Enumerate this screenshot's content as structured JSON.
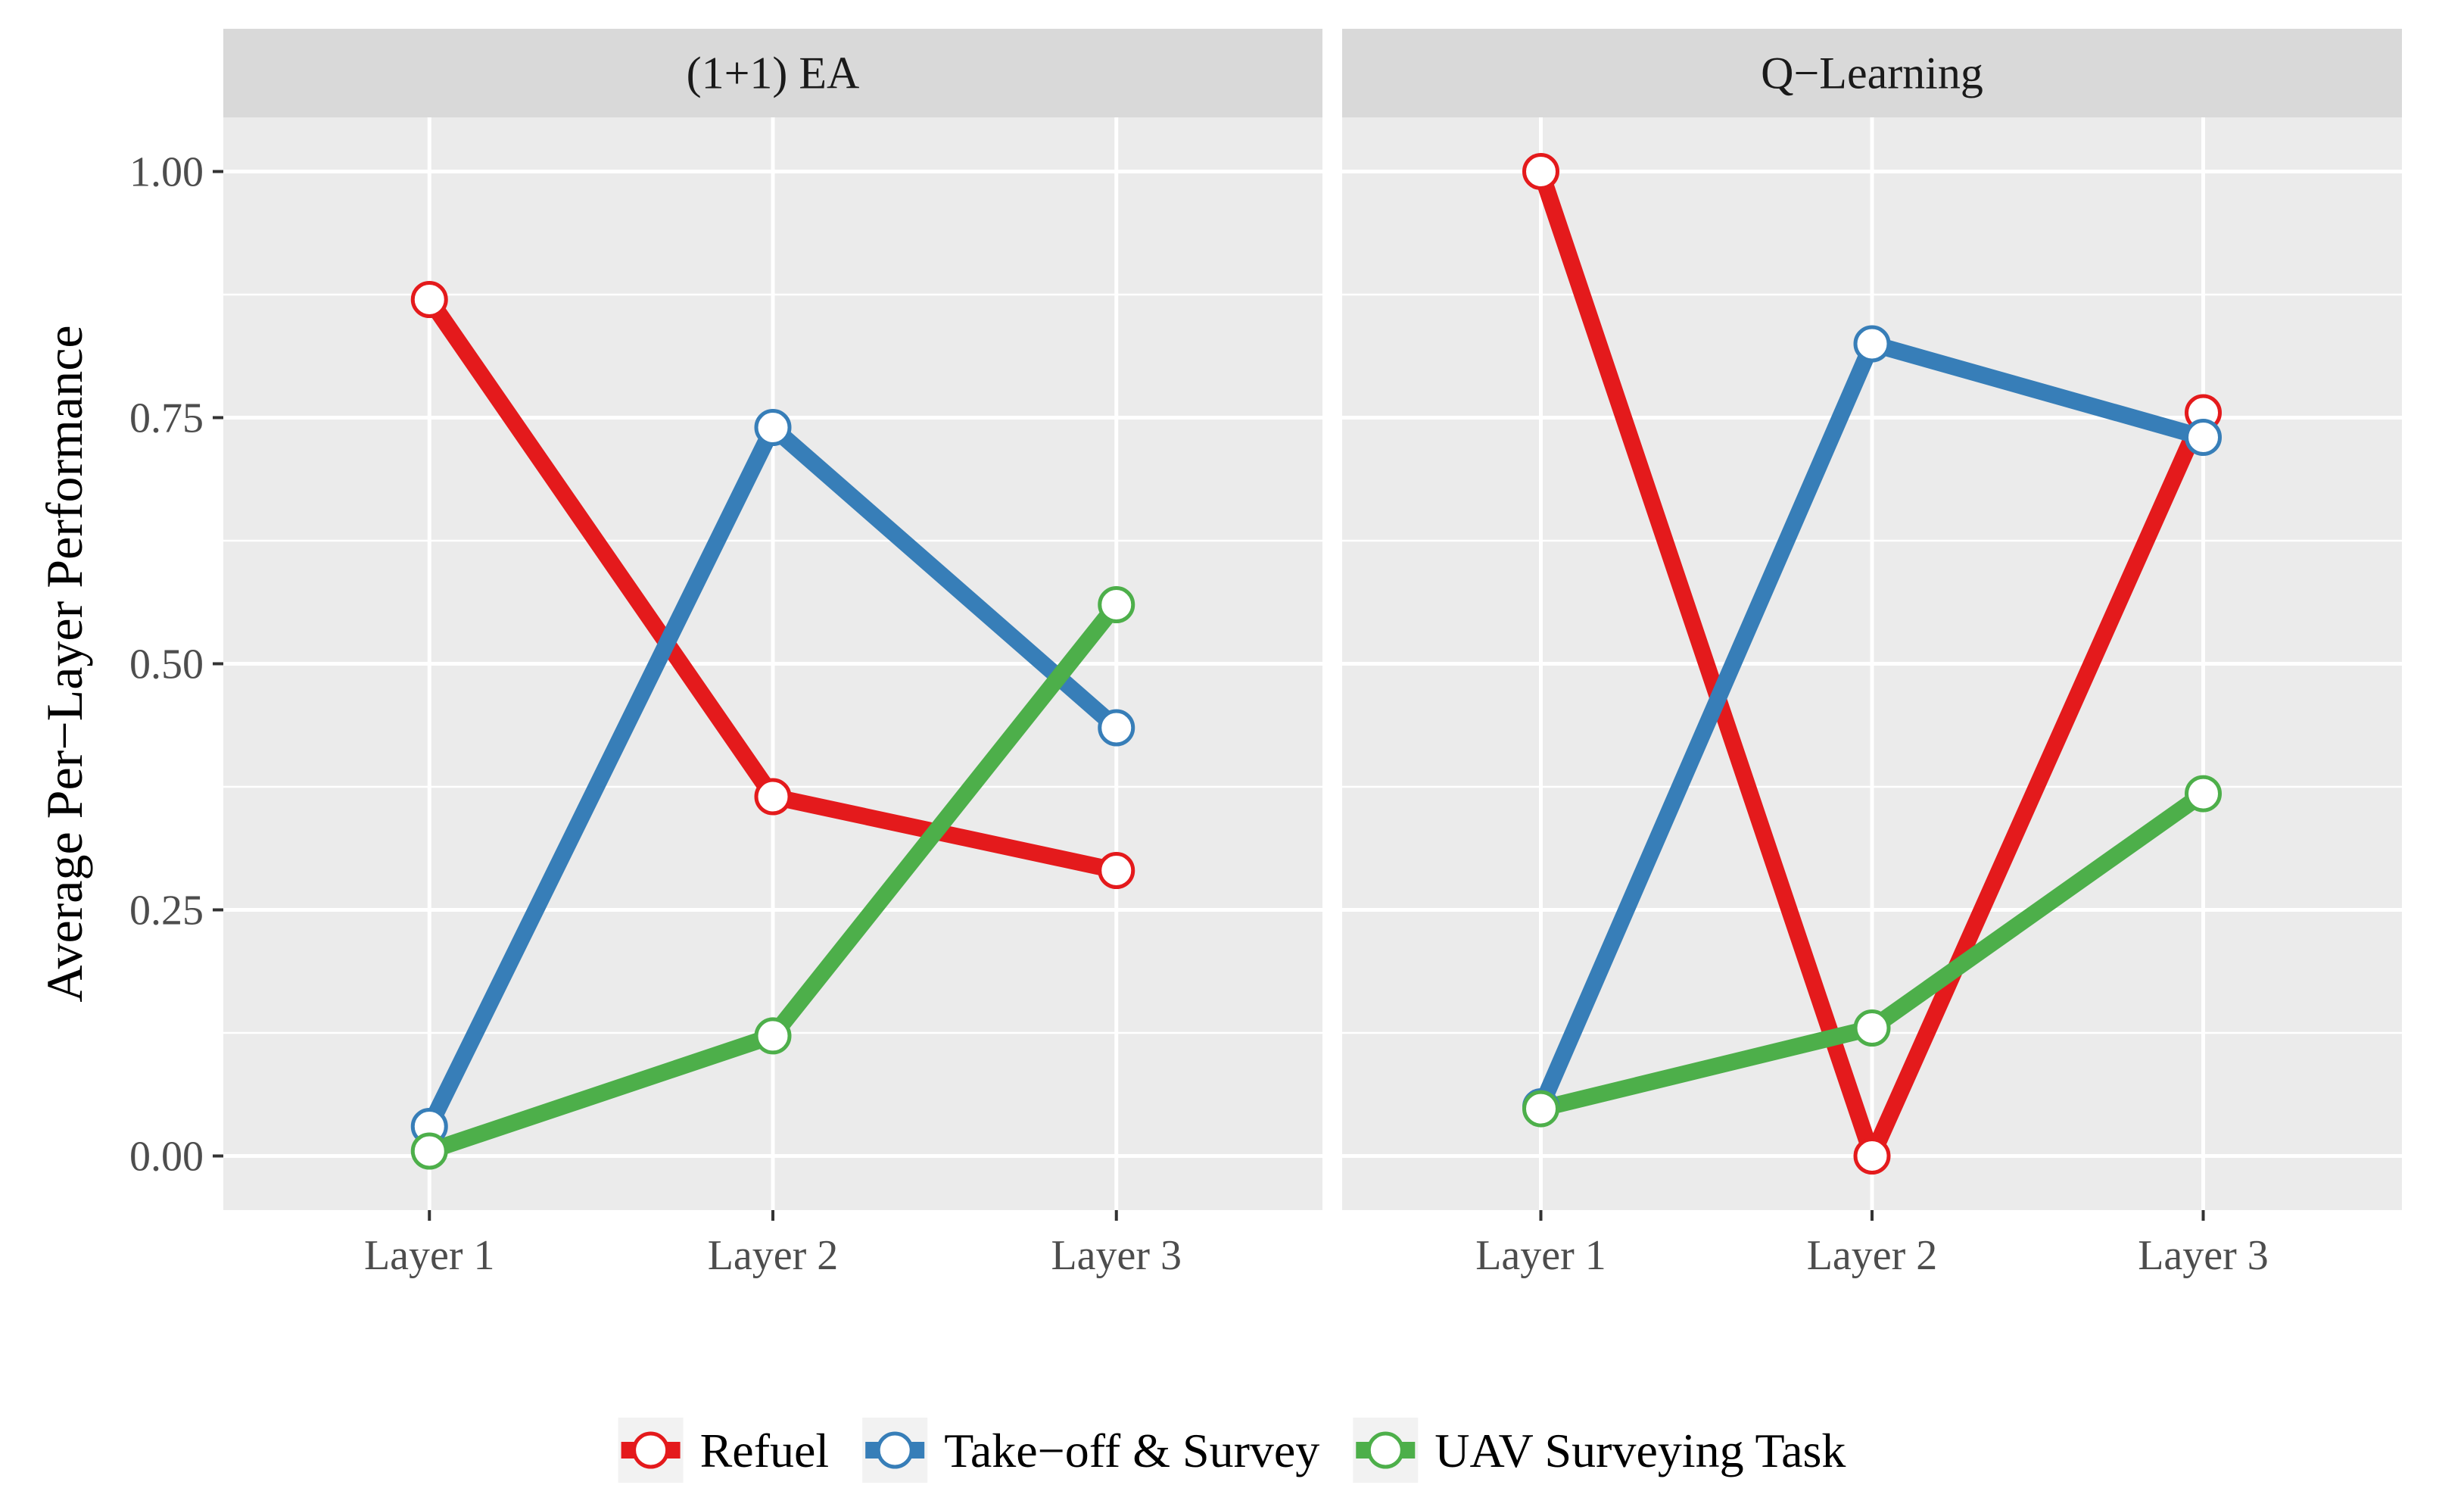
{
  "chart_data": {
    "type": "line",
    "ylabel": "Average Per−Layer Performance",
    "xlabel": "",
    "ylim": [
      -0.055,
      1.055
    ],
    "y_ticks": [
      "0.00",
      "0.25",
      "0.50",
      "0.75",
      "1.00"
    ],
    "y_tick_values": [
      0,
      0.25,
      0.5,
      0.75,
      1.0
    ],
    "y_minor_values": [
      0.125,
      0.375,
      0.625,
      0.875
    ],
    "categories": [
      "Layer 1",
      "Layer 2",
      "Layer 3"
    ],
    "legend": {
      "position": "bottom",
      "entries": [
        "Refuel",
        "Take−off & Survey",
        "UAV Surveying Task"
      ]
    },
    "series_colors": {
      "Refuel": "#e41a1c",
      "Take−off & Survey": "#377eb8",
      "UAV Surveying Task": "#4daf4a"
    },
    "panels": [
      {
        "title": "(1+1) EA",
        "series": [
          {
            "name": "Refuel",
            "values": [
              0.87,
              0.365,
              0.29
            ]
          },
          {
            "name": "Take−off & Survey",
            "values": [
              0.03,
              0.74,
              0.435
            ]
          },
          {
            "name": "UAV Surveying Task",
            "values": [
              0.005,
              0.122,
              0.56
            ]
          }
        ]
      },
      {
        "title": "Q−Learning",
        "series": [
          {
            "name": "Refuel",
            "values": [
              1.0,
              0.0,
              0.755
            ]
          },
          {
            "name": "Take−off & Survey",
            "values": [
              0.05,
              0.825,
              0.73
            ]
          },
          {
            "name": "UAV Surveying Task",
            "values": [
              0.048,
              0.13,
              0.368
            ]
          }
        ]
      }
    ]
  }
}
